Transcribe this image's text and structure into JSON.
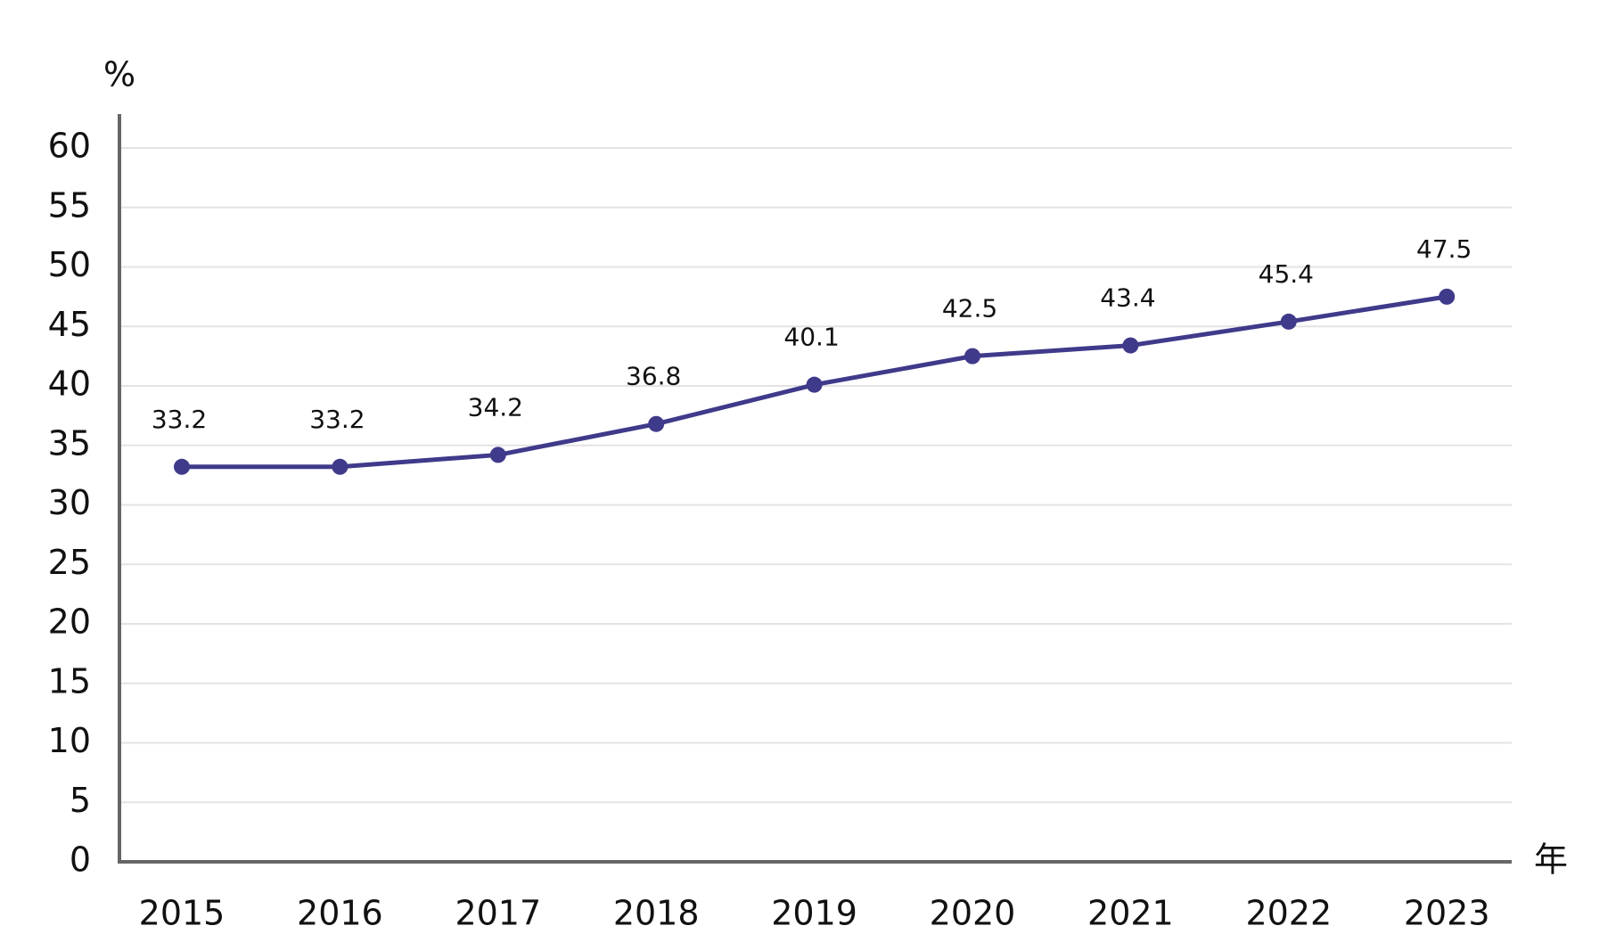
{
  "chart_data": {
    "type": "line",
    "y_label": "%",
    "x_label": "年",
    "categories": [
      "2015",
      "2016",
      "2017",
      "2018",
      "2019",
      "2020",
      "2021",
      "2022",
      "2023"
    ],
    "values": [
      33.2,
      33.2,
      34.2,
      36.8,
      40.1,
      42.5,
      43.4,
      45.4,
      47.5
    ],
    "color": "#3f3a8a",
    "ylim": [
      0,
      60
    ],
    "yticks": [
      0,
      5,
      10,
      15,
      20,
      25,
      30,
      35,
      40,
      45,
      50,
      55,
      60
    ],
    "grid": true,
    "markers": true,
    "data_labels": true
  }
}
